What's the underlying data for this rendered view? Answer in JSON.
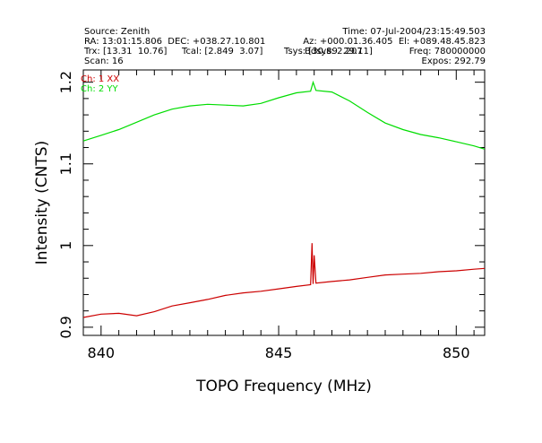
{
  "header": {
    "source": "Source: Zenith",
    "time": "Time: 07-Jul-2004/23:15:49.503",
    "ra_dec": "RA: 13:01:15.806  DEC: +038.27.10.801",
    "az_el": "Az: +000.01.36.405  El: +089.48.45.823",
    "trx": "Trx: [13.31  10.76]",
    "tcal": "Tcal: [2.849  3.07]",
    "tsys": "Tsys: [30.89  29.11]",
    "tsys_overlap": "Bdsys: 2.207",
    "freq": "Freq: 780000000",
    "scan": "Scan: 16",
    "expos": "Expos: 292.79"
  },
  "legend": [
    {
      "label": "Ch: 1 XX",
      "color": "#cc0000"
    },
    {
      "label": "Ch: 2 YY",
      "color": "#00dd00"
    }
  ],
  "chart_data": {
    "type": "line",
    "xlabel": "TOPO Frequency (MHz)",
    "ylabel": "Intensity (CNTS)",
    "xlim": [
      839.5,
      850.8
    ],
    "ylim": [
      0.89,
      1.215
    ],
    "x_ticks": [
      "840",
      "845",
      "850"
    ],
    "y_ticks": [
      "0.9",
      "1",
      "1.1",
      "1.2"
    ],
    "x_tick_values": [
      840,
      845,
      850
    ],
    "y_tick_values": [
      0.9,
      1.0,
      1.1,
      1.2
    ],
    "series": [
      {
        "name": "Ch: 1 XX",
        "color": "#cc0000",
        "x": [
          839.5,
          840.0,
          840.5,
          841.0,
          841.5,
          842.0,
          842.5,
          843.0,
          843.5,
          844.0,
          844.5,
          845.0,
          845.5,
          845.9,
          845.94,
          845.97,
          846.0,
          846.05,
          846.5,
          847.0,
          847.5,
          848.0,
          848.5,
          849.0,
          849.5,
          850.0,
          850.5,
          850.8
        ],
        "values": [
          0.912,
          0.916,
          0.917,
          0.914,
          0.919,
          0.926,
          0.93,
          0.934,
          0.939,
          0.942,
          0.944,
          0.947,
          0.95,
          0.952,
          1.003,
          0.953,
          0.988,
          0.954,
          0.956,
          0.958,
          0.961,
          0.964,
          0.965,
          0.966,
          0.968,
          0.969,
          0.971,
          0.972
        ]
      },
      {
        "name": "Ch: 2 YY",
        "color": "#00dd00",
        "x": [
          839.5,
          840.0,
          840.5,
          841.0,
          841.5,
          842.0,
          842.5,
          843.0,
          843.5,
          844.0,
          844.5,
          845.0,
          845.5,
          845.9,
          845.97,
          846.05,
          846.5,
          847.0,
          847.5,
          848.0,
          848.5,
          849.0,
          849.5,
          850.0,
          850.5,
          850.8
        ],
        "values": [
          1.128,
          1.135,
          1.142,
          1.151,
          1.16,
          1.167,
          1.171,
          1.173,
          1.172,
          1.171,
          1.174,
          1.181,
          1.187,
          1.189,
          1.2,
          1.19,
          1.188,
          1.177,
          1.163,
          1.15,
          1.142,
          1.136,
          1.132,
          1.127,
          1.122,
          1.118
        ]
      }
    ]
  }
}
